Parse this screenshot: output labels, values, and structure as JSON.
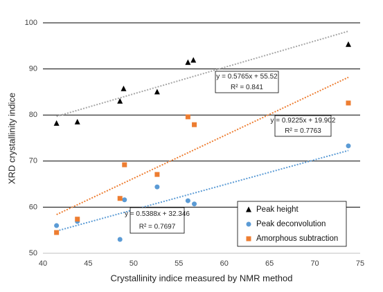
{
  "chart_data": {
    "type": "scatter",
    "x_label": "Crystallinity indice measured by NMR method",
    "y_label": "XRD crystallinity indice",
    "xlim": [
      40,
      75
    ],
    "xticks": [
      40,
      45,
      50,
      55,
      60,
      65,
      70,
      75
    ],
    "ylim": [
      50,
      100
    ],
    "yticks": [
      50,
      60,
      70,
      80,
      90,
      100
    ],
    "grid": true,
    "legend": "lower right",
    "series": [
      {
        "name": "Peak height",
        "color": "#000000",
        "marker": "triangle",
        "trend_color": "#a6a6a6",
        "x": [
          41.5,
          43.8,
          48.5,
          48.9,
          52.6,
          56.0,
          56.6,
          73.7
        ],
        "values": [
          78.2,
          78.5,
          83.0,
          85.7,
          85.0,
          91.4,
          91.9,
          95.3
        ]
      },
      {
        "name": "Peak deconvolution",
        "color": "#5b9bd5",
        "marker": "circle",
        "trend_color": "#5b9bd5",
        "x": [
          41.5,
          43.8,
          48.5,
          49.0,
          52.6,
          56.0,
          56.7,
          73.7
        ],
        "values": [
          56.0,
          56.9,
          53.0,
          61.6,
          64.4,
          61.4,
          60.7,
          73.3
        ]
      },
      {
        "name": "Amorphous subtraction",
        "color": "#ed7d31",
        "marker": "square",
        "trend_color": "#ed7d31",
        "x": [
          41.5,
          43.8,
          48.5,
          49.0,
          52.6,
          56.0,
          56.7,
          73.7
        ],
        "values": [
          54.5,
          57.4,
          61.9,
          69.2,
          67.1,
          79.6,
          77.9,
          82.6
        ]
      }
    ],
    "annotations": [
      {
        "lines": [
          "y = 0.5765x + 55.52",
          "R² = 0.841"
        ]
      },
      {
        "lines": [
          "y = 0.9225x + 19.902",
          "R² = 0.7763"
        ]
      },
      {
        "lines": [
          "y = 0.5388x + 32.346",
          "R² = 0.7697"
        ]
      }
    ]
  }
}
